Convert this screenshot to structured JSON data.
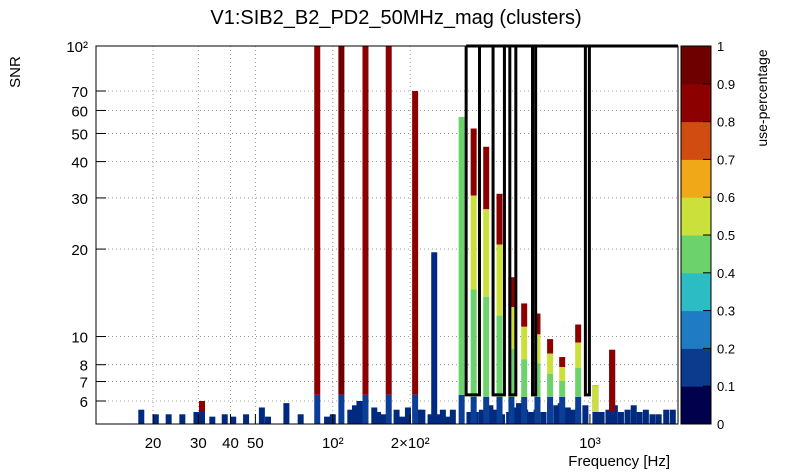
{
  "chart_data": {
    "type": "bar",
    "title": "V1:SIB2_B2_PD2_50MHz_mag (clusters)",
    "xlabel": "Frequency [Hz]",
    "ylabel": "SNR",
    "x_scale": "log",
    "y_scale": "log",
    "xlim": [
      12,
      2200
    ],
    "ylim": [
      5,
      100
    ],
    "x_ticks": [
      {
        "value": 20,
        "label": "20"
      },
      {
        "value": 30,
        "label": "30"
      },
      {
        "value": 40,
        "label": "40"
      },
      {
        "value": 50,
        "label": "50"
      },
      {
        "value": 100,
        "label": "10²"
      },
      {
        "value": 200,
        "label": "2×10²"
      },
      {
        "value": 1000,
        "label": "10³"
      }
    ],
    "y_ticks": [
      {
        "value": 6,
        "label": "6"
      },
      {
        "value": 7,
        "label": "7"
      },
      {
        "value": 8,
        "label": "8"
      },
      {
        "value": 10,
        "label": "10"
      },
      {
        "value": 20,
        "label": "20"
      },
      {
        "value": 30,
        "label": "30"
      },
      {
        "value": 40,
        "label": "40"
      },
      {
        "value": 50,
        "label": "50"
      },
      {
        "value": 60,
        "label": "60"
      },
      {
        "value": 70,
        "label": "70"
      },
      {
        "value": 100,
        "label": "10²"
      }
    ],
    "grid": true,
    "colorbar": {
      "label": "use-percentage",
      "range": [
        0,
        1
      ],
      "ticks": [
        "0",
        "0.1",
        "0.2",
        "0.3",
        "0.4",
        "0.5",
        "0.6",
        "0.7",
        "0.8",
        "0.9",
        "1"
      ],
      "colors": [
        "#00004c",
        "#0c3a8c",
        "#1f7bc4",
        "#2cbcc4",
        "#6cd26c",
        "#cce03c",
        "#f0a818",
        "#d04c10",
        "#8c0000",
        "#6e0000"
      ]
    },
    "tall_bars": [
      {
        "x": 87,
        "snr": 100,
        "use": 0.9
      },
      {
        "x": 108,
        "snr": 100,
        "use": 0.95
      },
      {
        "x": 134,
        "snr": 100,
        "use": 0.85
      },
      {
        "x": 165,
        "snr": 100,
        "use": 0.9
      },
      {
        "x": 209,
        "snr": 70,
        "use": 0.85
      },
      {
        "x": 317,
        "snr": 57,
        "use": 0.45
      }
    ],
    "low_bars": [
      {
        "x": 18,
        "snr": 5.6
      },
      {
        "x": 20.5,
        "snr": 5.4
      },
      {
        "x": 23,
        "snr": 5.4
      },
      {
        "x": 26,
        "snr": 5.4
      },
      {
        "x": 29.5,
        "snr": 5.5
      },
      {
        "x": 31,
        "snr": 5.8
      },
      {
        "x": 34,
        "snr": 5.3
      },
      {
        "x": 38,
        "snr": 5.4
      },
      {
        "x": 41,
        "snr": 5.3
      },
      {
        "x": 46,
        "snr": 5.4
      },
      {
        "x": 53,
        "snr": 5.7
      },
      {
        "x": 56,
        "snr": 5.3
      },
      {
        "x": 66,
        "snr": 5.9
      },
      {
        "x": 75,
        "snr": 5.4
      },
      {
        "x": 95,
        "snr": 5.3
      },
      {
        "x": 100,
        "snr": 5.4
      },
      {
        "x": 117,
        "snr": 5.6
      },
      {
        "x": 122,
        "snr": 5.8
      },
      {
        "x": 127,
        "snr": 6.0
      },
      {
        "x": 145,
        "snr": 5.7
      },
      {
        "x": 150,
        "snr": 5.5
      },
      {
        "x": 158,
        "snr": 5.4
      },
      {
        "x": 177,
        "snr": 5.6
      },
      {
        "x": 186,
        "snr": 5.3
      },
      {
        "x": 196,
        "snr": 5.7
      },
      {
        "x": 216,
        "snr": 5.6
      },
      {
        "x": 223,
        "snr": 5.6
      },
      {
        "x": 240,
        "snr": 5.4
      },
      {
        "x": 248,
        "snr": 19.5
      },
      {
        "x": 258,
        "snr": 5.4
      },
      {
        "x": 268,
        "snr": 5.6
      },
      {
        "x": 278,
        "snr": 5.3
      },
      {
        "x": 293,
        "snr": 5.6
      },
      {
        "x": 340,
        "snr": 5.5
      },
      {
        "x": 360,
        "snr": 5.5
      },
      {
        "x": 380,
        "snr": 5.6
      },
      {
        "x": 395,
        "snr": 5.4
      },
      {
        "x": 410,
        "snr": 5.8
      },
      {
        "x": 430,
        "snr": 5.6
      },
      {
        "x": 455,
        "snr": 5.4
      },
      {
        "x": 485,
        "snr": 5.5
      },
      {
        "x": 510,
        "snr": 5.7
      },
      {
        "x": 530,
        "snr": 5.9
      },
      {
        "x": 560,
        "snr": 5.6
      },
      {
        "x": 590,
        "snr": 5.5
      },
      {
        "x": 620,
        "snr": 5.6
      },
      {
        "x": 660,
        "snr": 5.5
      },
      {
        "x": 700,
        "snr": 5.9
      },
      {
        "x": 740,
        "snr": 5.8
      },
      {
        "x": 770,
        "snr": 5.9
      },
      {
        "x": 820,
        "snr": 5.7
      },
      {
        "x": 855,
        "snr": 5.6
      },
      {
        "x": 900,
        "snr": 5.5
      },
      {
        "x": 960,
        "snr": 5.8
      },
      {
        "x": 1060,
        "snr": 5.5
      },
      {
        "x": 1110,
        "snr": 5.5
      },
      {
        "x": 1180,
        "snr": 5.6
      },
      {
        "x": 1250,
        "snr": 5.8
      },
      {
        "x": 1320,
        "snr": 5.5
      },
      {
        "x": 1400,
        "snr": 5.6
      },
      {
        "x": 1480,
        "snr": 5.8
      },
      {
        "x": 1560,
        "snr": 5.5
      },
      {
        "x": 1650,
        "snr": 5.6
      },
      {
        "x": 1750,
        "snr": 5.4
      },
      {
        "x": 1850,
        "snr": 5.4
      },
      {
        "x": 1980,
        "snr": 5.6
      },
      {
        "x": 2100,
        "snr": 5.6
      }
    ],
    "warm_low_bars": [
      {
        "x": 31,
        "snr": 6.0,
        "use": 0.85
      },
      {
        "x": 1220,
        "snr": 9.0,
        "use": 0.85
      },
      {
        "x": 1050,
        "snr": 6.8,
        "use": 0.6
      }
    ],
    "cluster_bars": [
      {
        "x": 353,
        "snr": 52
      },
      {
        "x": 395,
        "snr": 45
      },
      {
        "x": 445,
        "snr": 31
      },
      {
        "x": 495,
        "snr": 16
      },
      {
        "x": 555,
        "snr": 13
      },
      {
        "x": 625,
        "snr": 12
      },
      {
        "x": 700,
        "snr": 9.8
      },
      {
        "x": 780,
        "snr": 8.5
      },
      {
        "x": 900,
        "snr": 11
      }
    ],
    "cluster_outline": [
      [
        330,
        372
      ],
      [
        420,
        465
      ],
      [
        488,
        515
      ],
      [
        598,
        615
      ],
      [
        960,
        995
      ]
    ]
  }
}
